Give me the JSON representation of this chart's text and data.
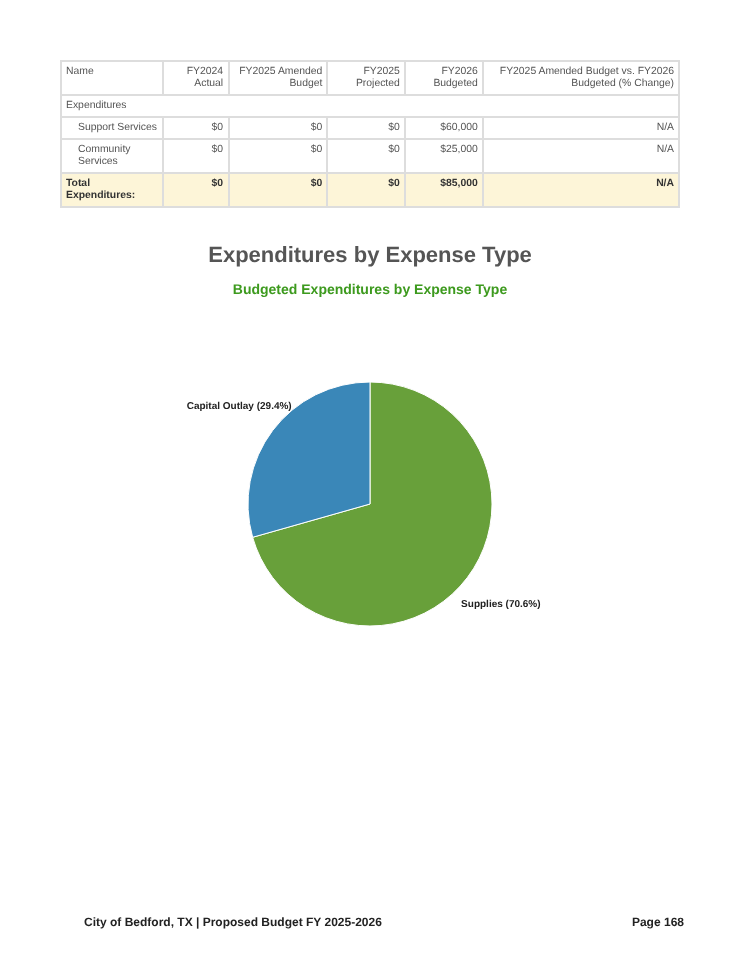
{
  "chart_data": [
    {
      "type": "other",
      "categories": [
        "Name",
        "FY2024 Actual",
        "FY2025 Amended Budget",
        "FY2025 Projected",
        "FY2026 Budgeted",
        "FY2025 Amended Budget vs. FY2026 Budgeted (% Change)"
      ],
      "annotations": [
        "Expenditures",
        "Support Services",
        "$0",
        "$0",
        "$0",
        "$60,000",
        "N/A",
        "Community Services",
        "$0",
        "$0",
        "$0",
        "$25,000",
        "N/A",
        "Total Expenditures:",
        "$0",
        "$0",
        "$0",
        "$85,000",
        "N/A"
      ]
    },
    {
      "type": "pie",
      "title": "Expenditures by Expense Type",
      "subtitle": "Budgeted Expenditures by Expense Type",
      "categories": [
        "Supplies",
        "Capital Outlay"
      ],
      "values": [
        70.6,
        29.4
      ],
      "colors": [
        "#68a03a",
        "#3a87b8"
      ],
      "value_labels": [
        "(70.6%)",
        "(29.4%)"
      ],
      "annotations": [
        "City of Bedford, TX | Proposed Budget FY 2025-2026",
        "Page 168"
      ]
    }
  ]
}
